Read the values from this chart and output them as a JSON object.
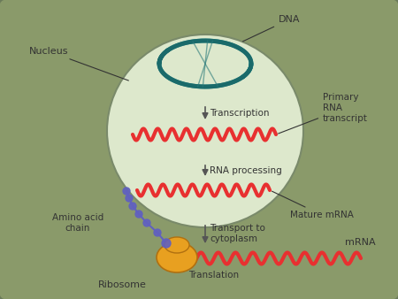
{
  "bg_color": "#8a9a6a",
  "nucleus_bg": "#dde8cc",
  "nucleus_border": "#7a8a6a",
  "outer_cell_border": "#6a7a5a",
  "dna_color1": "#2a8a8a",
  "dna_color2": "#1a6a6a",
  "rna_color": "#e83030",
  "ribosome_color": "#e8a020",
  "amino_chain_color": "#6060c0",
  "arrow_color": "#555555",
  "text_color": "#333333",
  "label_transcription": "Transcription",
  "label_rna_processing": "RNA processing",
  "label_transport": "Transport to\ncytoplasm",
  "label_translation": "Translation",
  "label_dna": "DNA",
  "label_nucleus": "Nucleus",
  "label_primary_rna": "Primary\nRNA\ntranscript",
  "label_mature_mrna": "Mature mRNA",
  "label_mrna": "mRNA",
  "label_amino_acid": "Amino acid\nchain",
  "label_ribosome": "Ribosome",
  "figsize": [
    4.5,
    3.38
  ],
  "dpi": 100
}
